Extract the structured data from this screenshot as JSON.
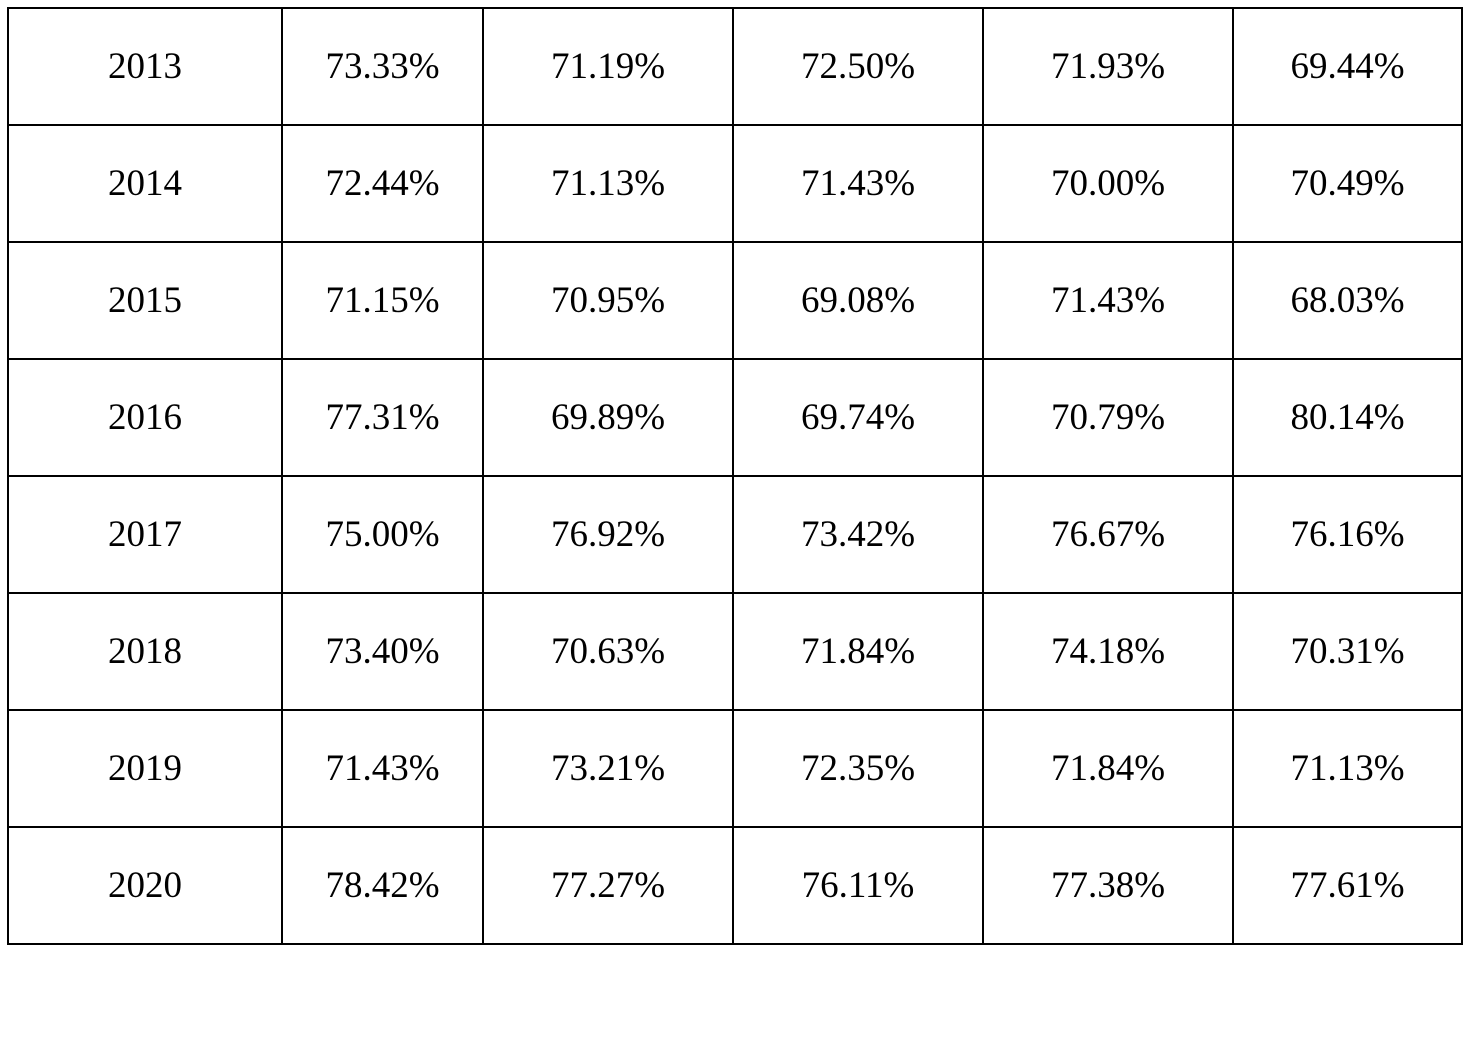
{
  "table": {
    "rows": [
      {
        "year": "2013",
        "values": [
          "73.33%",
          "71.19%",
          "72.50%",
          "71.93%",
          "69.44%"
        ]
      },
      {
        "year": "2014",
        "values": [
          "72.44%",
          "71.13%",
          "71.43%",
          "70.00%",
          "70.49%"
        ]
      },
      {
        "year": "2015",
        "values": [
          "71.15%",
          "70.95%",
          "69.08%",
          "71.43%",
          "68.03%"
        ]
      },
      {
        "year": "2016",
        "values": [
          "77.31%",
          "69.89%",
          "69.74%",
          "70.79%",
          "80.14%"
        ]
      },
      {
        "year": "2017",
        "values": [
          "75.00%",
          "76.92%",
          "73.42%",
          "76.67%",
          "76.16%"
        ]
      },
      {
        "year": "2018",
        "values": [
          "73.40%",
          "70.63%",
          "71.84%",
          "74.18%",
          "70.31%"
        ]
      },
      {
        "year": "2019",
        "values": [
          "71.43%",
          "73.21%",
          "72.35%",
          "71.84%",
          "71.13%"
        ]
      },
      {
        "year": "2020",
        "values": [
          "78.42%",
          "77.27%",
          "76.11%",
          "77.38%",
          "77.61%"
        ]
      }
    ]
  }
}
